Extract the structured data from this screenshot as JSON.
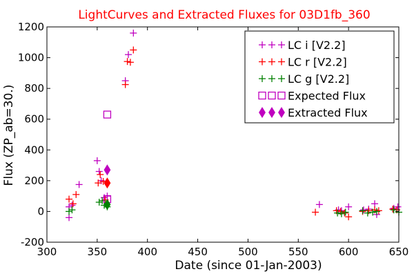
{
  "chart_data": {
    "type": "scatter",
    "title": "LightCurves and Extracted Fluxes for 03D1fb_360",
    "title_color": "#ff0000",
    "xlabel": "Date (since 01-Jan-2003)",
    "ylabel": "Flux (ZP_ab=30.)",
    "xlim": [
      300,
      650
    ],
    "ylim": [
      -200,
      1200
    ],
    "xticks": [
      300,
      350,
      400,
      450,
      500,
      550,
      600,
      650
    ],
    "yticks": [
      -200,
      0,
      200,
      400,
      600,
      800,
      1000,
      1200
    ],
    "grid": false,
    "legend_position": "top-right",
    "series": [
      {
        "name": "LC i [V2.2]",
        "marker": "plus",
        "color": "#bf00bf",
        "points": [
          [
            322,
            -40
          ],
          [
            322,
            30
          ],
          [
            325,
            40
          ],
          [
            332,
            175
          ],
          [
            350,
            330
          ],
          [
            352,
            260
          ],
          [
            354,
            200
          ],
          [
            357,
            90
          ],
          [
            360,
            100
          ],
          [
            378,
            850
          ],
          [
            381,
            1020
          ],
          [
            386,
            1160
          ],
          [
            571,
            45
          ],
          [
            590,
            10
          ],
          [
            593,
            5
          ],
          [
            600,
            30
          ],
          [
            615,
            10
          ],
          [
            620,
            15
          ],
          [
            626,
            50
          ],
          [
            628,
            -20
          ],
          [
            645,
            20
          ],
          [
            649,
            30
          ]
        ]
      },
      {
        "name": "LC r [V2.2]",
        "marker": "plus",
        "color": "#ff0000",
        "points": [
          [
            322,
            80
          ],
          [
            326,
            50
          ],
          [
            329,
            110
          ],
          [
            351,
            185
          ],
          [
            353,
            240
          ],
          [
            356,
            195
          ],
          [
            358,
            75
          ],
          [
            378,
            825
          ],
          [
            380,
            975
          ],
          [
            383,
            970
          ],
          [
            386,
            1050
          ],
          [
            567,
            -5
          ],
          [
            588,
            5
          ],
          [
            592,
            0
          ],
          [
            596,
            -10
          ],
          [
            600,
            -35
          ],
          [
            614,
            0
          ],
          [
            620,
            5
          ],
          [
            626,
            10
          ],
          [
            630,
            5
          ],
          [
            644,
            15
          ],
          [
            648,
            10
          ]
        ]
      },
      {
        "name": "LC g [V2.2]",
        "marker": "plus",
        "color": "#008000",
        "points": [
          [
            322,
            0
          ],
          [
            325,
            10
          ],
          [
            352,
            60
          ],
          [
            355,
            70
          ],
          [
            357,
            40
          ],
          [
            360,
            30
          ],
          [
            589,
            -10
          ],
          [
            593,
            -15
          ],
          [
            597,
            -5
          ],
          [
            614,
            5
          ],
          [
            619,
            -10
          ],
          [
            624,
            -5
          ],
          [
            628,
            0
          ],
          [
            645,
            10
          ],
          [
            650,
            -5
          ]
        ]
      },
      {
        "name": "Expected Flux",
        "marker": "square",
        "color": "#bf00bf",
        "points": [
          [
            360,
            630
          ],
          [
            360,
            80
          ]
        ]
      },
      {
        "name": "Extracted Flux",
        "marker": "diamond",
        "color": "#bf00bf",
        "marker_colors": [
          "#bf00bf",
          "#ff0000",
          "#008000"
        ],
        "points": [
          [
            360,
            270
          ],
          [
            360,
            185
          ],
          [
            360,
            45
          ]
        ]
      }
    ]
  }
}
